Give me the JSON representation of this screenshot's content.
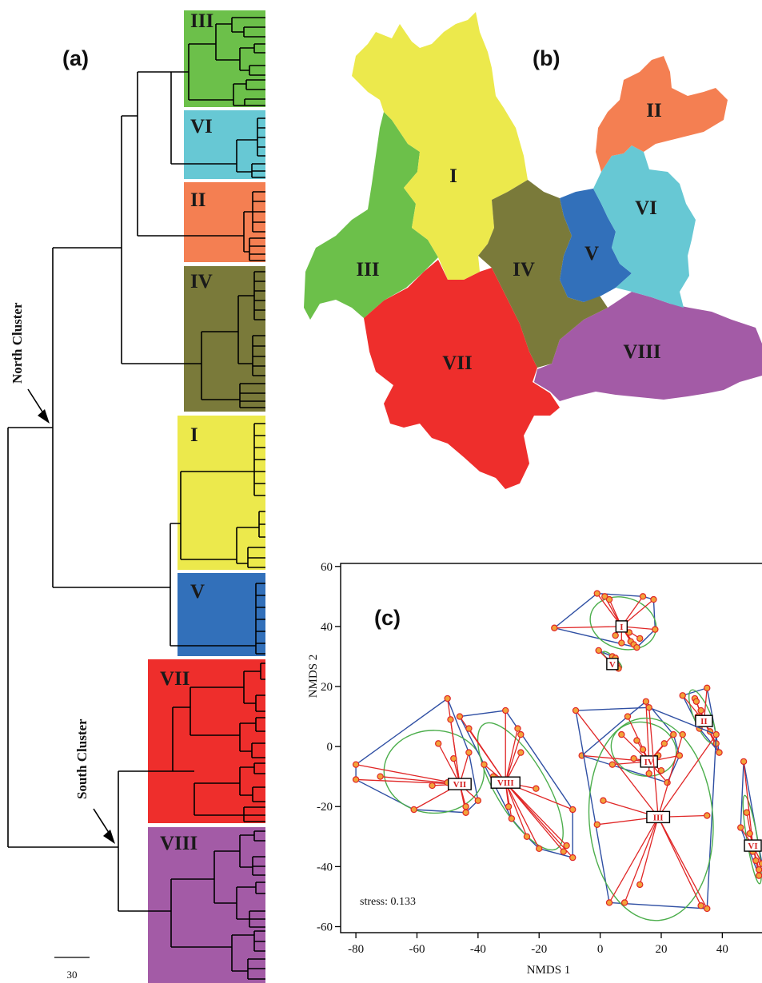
{
  "panels": {
    "a": "(a)",
    "b": "(b)",
    "c": "(c)"
  },
  "dendrogram": {
    "clusters": [
      {
        "id": "III",
        "label": "III",
        "color": "#6cc04a"
      },
      {
        "id": "VI",
        "label": "VI",
        "color": "#67c8d4"
      },
      {
        "id": "II",
        "label": "II",
        "color": "#f47f52"
      },
      {
        "id": "IV",
        "label": "IV",
        "color": "#7a7a3a"
      },
      {
        "id": "I",
        "label": "I",
        "color": "#ece94c"
      },
      {
        "id": "V",
        "label": "V",
        "color": "#3270ba"
      },
      {
        "id": "VII",
        "label": "VII",
        "color": "#ee2e2c"
      },
      {
        "id": "VIII",
        "label": "VIII",
        "color": "#a35ba6"
      }
    ],
    "north_label": "North Cluster",
    "south_label": "South Cluster",
    "scale_value": "30"
  },
  "map": {
    "regions": [
      {
        "id": "I",
        "label": "I",
        "color": "#ece94c"
      },
      {
        "id": "II",
        "label": "II",
        "color": "#f47f52"
      },
      {
        "id": "III",
        "label": "III",
        "color": "#6cc04a"
      },
      {
        "id": "IV",
        "label": "IV",
        "color": "#7a7a3a"
      },
      {
        "id": "V",
        "label": "V",
        "color": "#3270ba"
      },
      {
        "id": "VI",
        "label": "VI",
        "color": "#67c8d4"
      },
      {
        "id": "VII",
        "label": "VII",
        "color": "#ee2e2c"
      },
      {
        "id": "VIII",
        "label": "VIII",
        "color": "#a35ba6"
      }
    ]
  },
  "chart_data": {
    "type": "scatter",
    "xlabel": "NMDS 1",
    "ylabel": "NMDS 2",
    "xlim": [
      -85,
      53
    ],
    "ylim": [
      -62,
      61
    ],
    "xticks": [
      -80,
      -60,
      -40,
      -20,
      0,
      20,
      40
    ],
    "yticks": [
      -60,
      -40,
      -20,
      0,
      20,
      40,
      60
    ],
    "stress_text": "stress: 0.133",
    "colors": {
      "hull": "#2f4fa3",
      "spider": "#e02626",
      "ellipse": "#4cae4c",
      "point_fill": "#f2a33a",
      "point_edge": "#e02626"
    },
    "groups": [
      {
        "name": "I",
        "centroid": [
          7,
          40
        ],
        "points": [
          [
            -15,
            39.5
          ],
          [
            -1,
            51
          ],
          [
            1.5,
            50
          ],
          [
            3,
            49
          ],
          [
            14,
            50
          ],
          [
            17.5,
            49
          ],
          [
            18,
            39
          ],
          [
            9.5,
            38
          ],
          [
            10,
            35
          ],
          [
            11,
            34
          ],
          [
            12,
            33
          ],
          [
            7,
            34.5
          ],
          [
            5,
            37
          ],
          [
            13,
            36
          ]
        ]
      },
      {
        "name": "V",
        "centroid": [
          4,
          27.5
        ],
        "points": [
          [
            -0.5,
            32
          ],
          [
            4,
            30
          ],
          [
            5,
            29.5
          ],
          [
            5.5,
            27
          ],
          [
            6,
            26
          ]
        ]
      },
      {
        "name": "II",
        "centroid": [
          34,
          8.5
        ],
        "points": [
          [
            27,
            17
          ],
          [
            31,
            16
          ],
          [
            31.5,
            15
          ],
          [
            35,
            19.5
          ],
          [
            36,
            5
          ],
          [
            38,
            1
          ],
          [
            39,
            -2
          ],
          [
            32,
            10
          ],
          [
            33,
            12
          ],
          [
            32.5,
            6
          ]
        ]
      },
      {
        "name": "IV",
        "centroid": [
          16,
          -5
        ],
        "points": [
          [
            7,
            4
          ],
          [
            9,
            10
          ],
          [
            11,
            -4
          ],
          [
            12,
            2
          ],
          [
            14,
            -1
          ],
          [
            16,
            -9
          ],
          [
            19,
            -3
          ],
          [
            21,
            1
          ],
          [
            20,
            -8
          ],
          [
            22,
            -12
          ],
          [
            24,
            4
          ],
          [
            26,
            -3
          ],
          [
            4,
            -6
          ],
          [
            -6,
            -3
          ],
          [
            15,
            15
          ]
        ]
      },
      {
        "name": "III",
        "centroid": [
          19,
          -23.5
        ],
        "points": [
          [
            -8,
            12
          ],
          [
            16,
            13
          ],
          [
            38,
            4
          ],
          [
            27,
            4
          ],
          [
            1,
            -18
          ],
          [
            -1,
            -26
          ],
          [
            3,
            -52
          ],
          [
            8,
            -52
          ],
          [
            13,
            -46
          ],
          [
            33,
            -53
          ],
          [
            35,
            -54
          ],
          [
            35,
            -23
          ]
        ]
      },
      {
        "name": "VI",
        "centroid": [
          50,
          -33
        ],
        "points": [
          [
            47,
            -5
          ],
          [
            48,
            -22
          ],
          [
            49,
            -29
          ],
          [
            50,
            -35
          ],
          [
            51,
            -38
          ],
          [
            52,
            -41
          ],
          [
            52,
            -43
          ],
          [
            46,
            -27
          ],
          [
            53,
            -39
          ]
        ]
      },
      {
        "name": "VII",
        "centroid": [
          -46,
          -12.5
        ],
        "points": [
          [
            -80,
            -6
          ],
          [
            -80,
            -11
          ],
          [
            -72,
            -10
          ],
          [
            -61,
            -21
          ],
          [
            -53,
            1
          ],
          [
            -50,
            16
          ],
          [
            -49,
            9
          ],
          [
            -48,
            -4
          ],
          [
            -47,
            -13
          ],
          [
            -44,
            -20
          ],
          [
            -44,
            -22
          ],
          [
            -40,
            -18
          ],
          [
            -50,
            -12
          ],
          [
            -55,
            -13
          ],
          [
            -43,
            -2
          ]
        ]
      },
      {
        "name": "VIII",
        "centroid": [
          -31,
          -12
        ],
        "points": [
          [
            -46,
            10
          ],
          [
            -43,
            6
          ],
          [
            -31,
            12
          ],
          [
            -38,
            -6
          ],
          [
            -33,
            -11
          ],
          [
            -30,
            -20
          ],
          [
            -27,
            6
          ],
          [
            -26,
            4
          ],
          [
            -24,
            -30
          ],
          [
            -21,
            -14
          ],
          [
            -20,
            -34
          ],
          [
            -12,
            -35
          ],
          [
            -11,
            -33
          ],
          [
            -9,
            -37
          ],
          [
            -9,
            -21
          ],
          [
            -26,
            -2
          ],
          [
            -35,
            -10
          ],
          [
            -29,
            -24
          ]
        ]
      }
    ]
  }
}
